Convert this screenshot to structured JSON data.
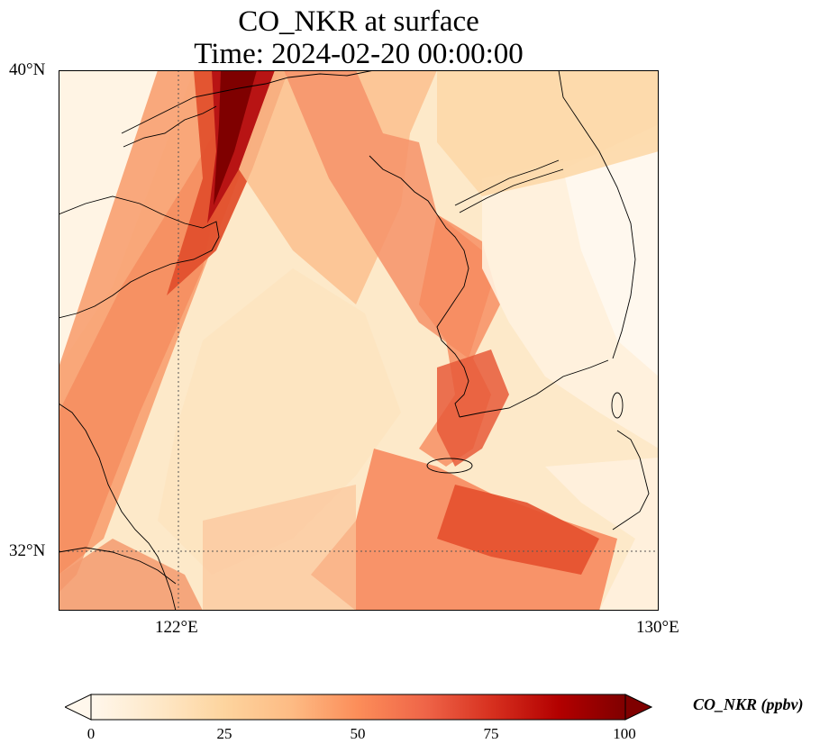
{
  "title": {
    "line1": "CO_NKR at surface",
    "line2": "Time: 2024-02-20 00:00:00"
  },
  "map": {
    "lat_ticks": [
      "40°N",
      "32°N"
    ],
    "lon_ticks": [
      "122°E",
      "130°E"
    ],
    "extent": {
      "lon_min": 120,
      "lon_max": 130,
      "lat_min": 31,
      "lat_max": 40
    },
    "gridlines": {
      "style": "dotted",
      "lons": [
        122
      ],
      "lats": [
        32
      ]
    },
    "colormap": "OrRd",
    "field_description": "surface CO_NKR concentration",
    "coastline_color": "#000000"
  },
  "colorbar": {
    "label": "CO_NKR (ppbv)",
    "ticks": [
      "0",
      "25",
      "50",
      "75",
      "100"
    ],
    "min": 0,
    "max": 100,
    "extend": "both",
    "colors": [
      "#fff7ec",
      "#fee8c8",
      "#fdd49e",
      "#fdbb84",
      "#fc8d59",
      "#ef6548",
      "#d7301f",
      "#b30000",
      "#7f0000"
    ]
  }
}
